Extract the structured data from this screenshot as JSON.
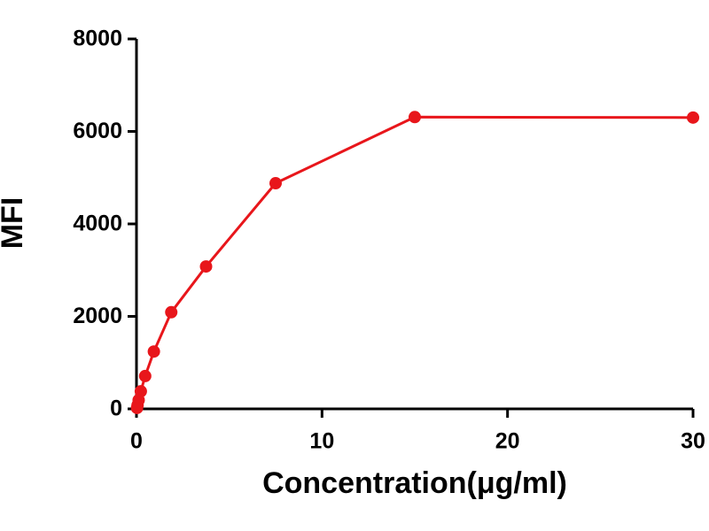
{
  "chart_data": {
    "type": "line",
    "x_label": "Concentration(μg/ml)",
    "y_label": "MFI",
    "x": [
      30,
      15,
      7.5,
      3.75,
      1.875,
      0.9375,
      0.469,
      0.234,
      0.117,
      0.0586,
      0.0293
    ],
    "series": [
      {
        "name": "MFI",
        "color": "#e8161b",
        "values": [
          6300,
          6310,
          4880,
          3080,
          2090,
          1240,
          710,
          380,
          190,
          80,
          20
        ]
      }
    ],
    "xlim": [
      0,
      30
    ],
    "xticks": [
      0,
      10,
      20,
      30
    ],
    "ylim": [
      0,
      8000
    ],
    "yticks": [
      0,
      2000,
      4000,
      6000,
      8000
    ],
    "grid": false
  }
}
